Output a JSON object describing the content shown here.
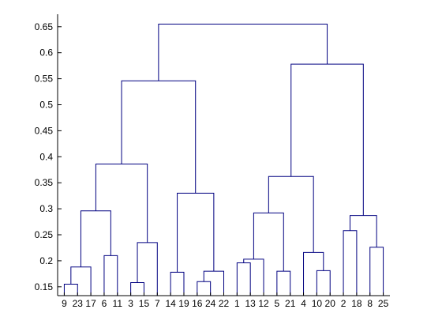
{
  "chart_data": {
    "type": "dendrogram",
    "title": "",
    "xlabel": "",
    "ylabel": "",
    "ylim": [
      0.133,
      0.674
    ],
    "yticks": [
      0.15,
      0.2,
      0.25,
      0.3,
      0.35,
      0.4,
      0.45,
      0.5,
      0.55,
      0.6,
      0.65
    ],
    "ytick_labels": [
      "0.15",
      "0.2",
      "0.25",
      "0.3",
      "0.35",
      "0.4",
      "0.45",
      "0.5",
      "0.55",
      "0.6",
      "0.65"
    ],
    "leaf_order": [
      "9",
      "23",
      "17",
      "6",
      "11",
      "3",
      "15",
      "7",
      "14",
      "19",
      "16",
      "24",
      "22",
      "1",
      "13",
      "12",
      "5",
      "21",
      "4",
      "10",
      "20",
      "2",
      "18",
      "8",
      "25"
    ],
    "merges": [
      {
        "left": "9",
        "right": "23",
        "height": 0.155
      },
      {
        "left": "9-23",
        "right": "17",
        "height": 0.188
      },
      {
        "left": "6",
        "right": "11",
        "height": 0.21
      },
      {
        "left": "9-23-17",
        "right": "6-11",
        "height": 0.296
      },
      {
        "left": "3",
        "right": "15",
        "height": 0.158
      },
      {
        "left": "3-15",
        "right": "7",
        "height": 0.235
      },
      {
        "left": "9..11",
        "right": "3-15-7",
        "height": 0.386
      },
      {
        "left": "14",
        "right": "19",
        "height": 0.178
      },
      {
        "left": "16",
        "right": "24",
        "height": 0.16
      },
      {
        "left": "16-24",
        "right": "22",
        "height": 0.18
      },
      {
        "left": "14-19",
        "right": "16-24-22",
        "height": 0.33
      },
      {
        "left": "9..7",
        "right": "14..22",
        "height": 0.546
      },
      {
        "left": "1",
        "right": "13",
        "height": 0.196
      },
      {
        "left": "1-13",
        "right": "12",
        "height": 0.203
      },
      {
        "left": "5",
        "right": "21",
        "height": 0.18
      },
      {
        "left": "1-13-12",
        "right": "5-21",
        "height": 0.292
      },
      {
        "left": "10",
        "right": "20",
        "height": 0.181
      },
      {
        "left": "4",
        "right": "10-20",
        "height": 0.216
      },
      {
        "left": "1..21",
        "right": "4-10-20",
        "height": 0.362
      },
      {
        "left": "2",
        "right": "18",
        "height": 0.258
      },
      {
        "left": "8",
        "right": "25",
        "height": 0.226
      },
      {
        "left": "2-18",
        "right": "8-25",
        "height": 0.287
      },
      {
        "left": "1..20",
        "right": "2..25",
        "height": 0.578
      },
      {
        "left": "9..22",
        "right": "1..25",
        "height": 0.655
      }
    ],
    "line_color": "#000080",
    "axis_color": "#000000",
    "grid": false,
    "legend": "none"
  }
}
